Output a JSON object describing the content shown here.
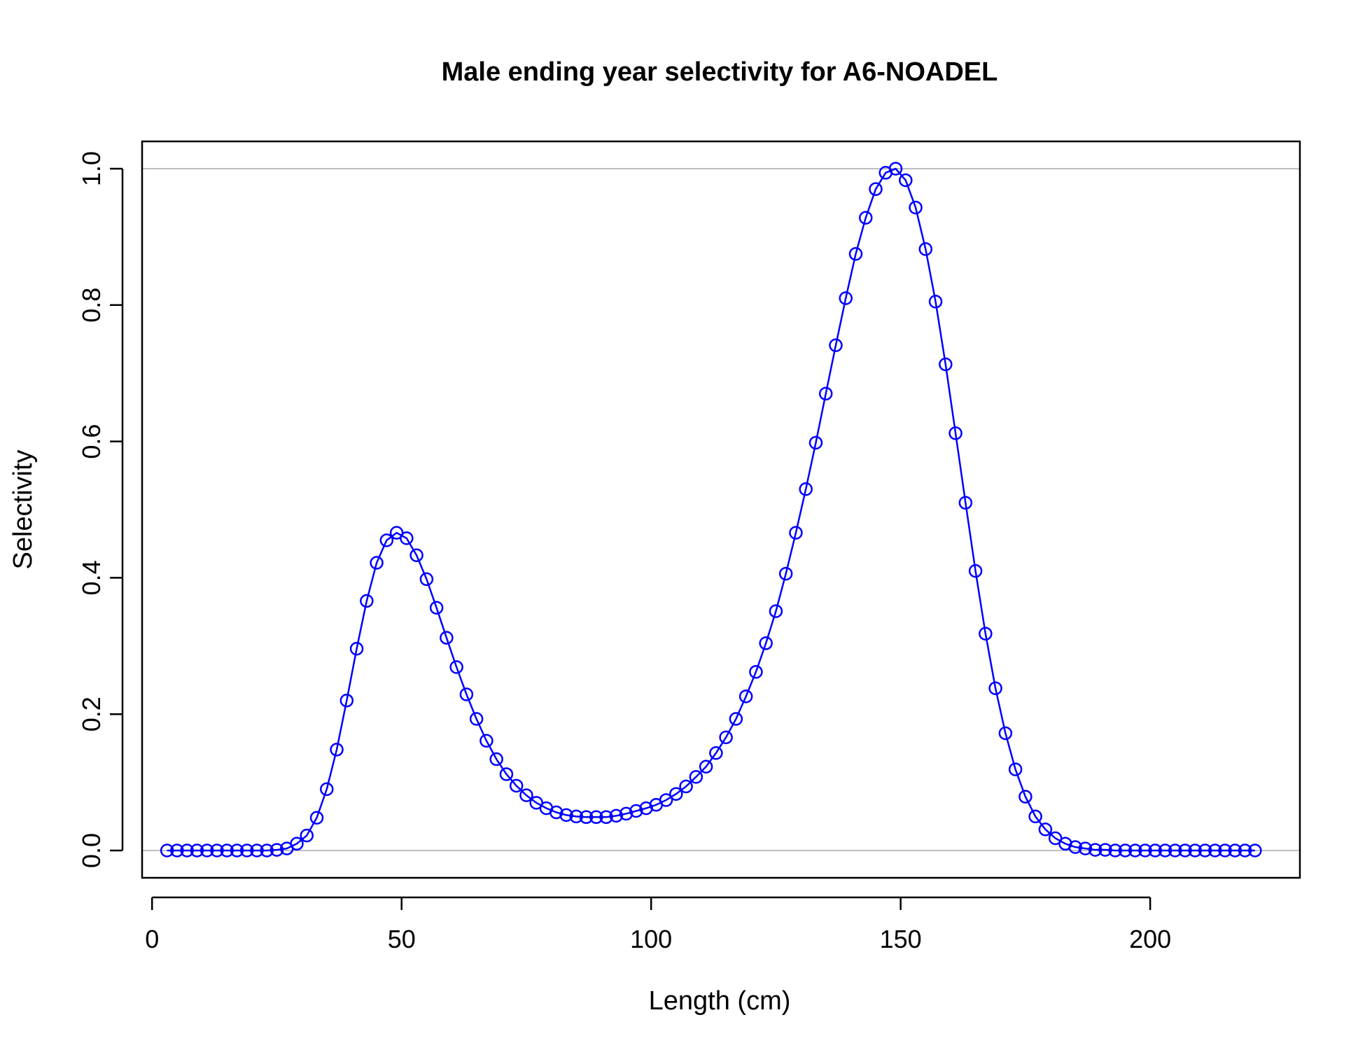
{
  "chart_data": {
    "type": "line",
    "title": "Male ending year selectivity for A6-NOADEL",
    "xlabel": "Length (cm)",
    "ylabel": "Selectivity",
    "xlim": [
      -2,
      230
    ],
    "ylim": [
      -0.04,
      1.04
    ],
    "x_ticks": [
      0,
      50,
      100,
      150,
      200
    ],
    "x_tick_labels": [
      "0",
      "50",
      "100",
      "150",
      "200"
    ],
    "y_ticks": [
      0.0,
      0.2,
      0.4,
      0.6,
      0.8,
      1.0
    ],
    "y_tick_labels": [
      "0.0",
      "0.2",
      "0.4",
      "0.6",
      "0.8",
      "1.0"
    ],
    "reference_lines_y": [
      0,
      1
    ],
    "grid": false,
    "series": [
      {
        "color": "#0000ff",
        "line": true,
        "markers": "open-circle",
        "x": [
          3,
          5,
          7,
          9,
          11,
          13,
          15,
          17,
          19,
          21,
          23,
          25,
          27,
          29,
          31,
          33,
          35,
          37,
          39,
          41,
          43,
          45,
          47,
          49,
          51,
          53,
          55,
          57,
          59,
          61,
          63,
          65,
          67,
          69,
          71,
          73,
          75,
          77,
          79,
          81,
          83,
          85,
          87,
          89,
          91,
          93,
          95,
          97,
          99,
          101,
          103,
          105,
          107,
          109,
          111,
          113,
          115,
          117,
          119,
          121,
          123,
          125,
          127,
          129,
          131,
          133,
          135,
          137,
          139,
          141,
          143,
          145,
          147,
          149,
          151,
          153,
          155,
          157,
          159,
          161,
          163,
          165,
          167,
          169,
          171,
          173,
          175,
          177,
          179,
          181,
          183,
          185,
          187,
          189,
          191,
          193,
          195,
          197,
          199,
          201,
          203,
          205,
          207,
          209,
          211,
          213,
          215,
          217,
          219,
          221
        ],
        "y": [
          0.0,
          0.0,
          0.0,
          0.0,
          0.0,
          0.0,
          0.0,
          0.0,
          0.0,
          0.0,
          0.0,
          0.001,
          0.003,
          0.01,
          0.022,
          0.048,
          0.09,
          0.148,
          0.22,
          0.296,
          0.366,
          0.422,
          0.455,
          0.466,
          0.458,
          0.433,
          0.398,
          0.356,
          0.312,
          0.269,
          0.229,
          0.193,
          0.161,
          0.134,
          0.112,
          0.095,
          0.081,
          0.07,
          0.062,
          0.056,
          0.052,
          0.05,
          0.049,
          0.049,
          0.049,
          0.051,
          0.054,
          0.058,
          0.062,
          0.067,
          0.074,
          0.083,
          0.094,
          0.108,
          0.123,
          0.143,
          0.166,
          0.193,
          0.226,
          0.262,
          0.304,
          0.351,
          0.406,
          0.466,
          0.53,
          0.598,
          0.67,
          0.741,
          0.81,
          0.875,
          0.928,
          0.97,
          0.994,
          1.0,
          0.983,
          0.943,
          0.882,
          0.805,
          0.713,
          0.612,
          0.51,
          0.41,
          0.318,
          0.238,
          0.172,
          0.119,
          0.079,
          0.05,
          0.031,
          0.018,
          0.01,
          0.005,
          0.003,
          0.001,
          0.001,
          0.0,
          0.0,
          0.0,
          0.0,
          0.0,
          0.0,
          0.0,
          0.0,
          0.0,
          0.0,
          0.0,
          0.0,
          0.0,
          0.0,
          0.0
        ]
      }
    ]
  }
}
